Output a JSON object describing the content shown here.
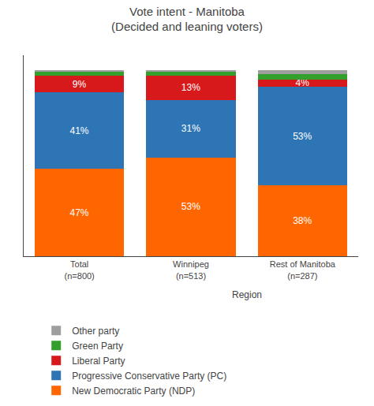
{
  "chart_data": {
    "type": "bar",
    "title": "Vote intent - Manitoba\n(Decided and leaning voters)",
    "categories": [
      "Total\n(n=800)",
      "Winnipeg\n(n=513)",
      "Rest of Manitoba\n(n=287)"
    ],
    "series": [
      {
        "name": "New Democratic Party (NDP)",
        "color": "#FF6600",
        "values": [
          47,
          53,
          38
        ],
        "value_labels": [
          "47%",
          "53%",
          "38%"
        ]
      },
      {
        "name": "Progressive Conservative Party (PC)",
        "color": "#2E75B6",
        "values": [
          41,
          31,
          53
        ],
        "value_labels": [
          "41%",
          "31%",
          "53%"
        ]
      },
      {
        "name": "Liberal Party",
        "color": "#D7191C",
        "values": [
          9,
          13,
          4
        ],
        "value_labels": [
          "9%",
          "13%",
          "4%"
        ]
      },
      {
        "name": "Green Party",
        "color": "#33A02C",
        "values": [
          2,
          2,
          3
        ],
        "value_labels": [
          null,
          null,
          null
        ]
      },
      {
        "name": "Other party",
        "color": "#9E9E9E",
        "values": [
          1,
          1,
          2
        ],
        "value_labels": [
          null,
          null,
          null
        ]
      }
    ],
    "stacked": true,
    "data_labels": true,
    "ylim": [
      0,
      108
    ],
    "yticks": [],
    "tick_labels": "x",
    "grid": false,
    "legend": "bottom",
    "annotations": [
      {
        "text": "Region",
        "categories": [
          "Winnipeg\n(n=513)",
          "Rest of Manitoba\n(n=287)"
        ]
      }
    ]
  }
}
